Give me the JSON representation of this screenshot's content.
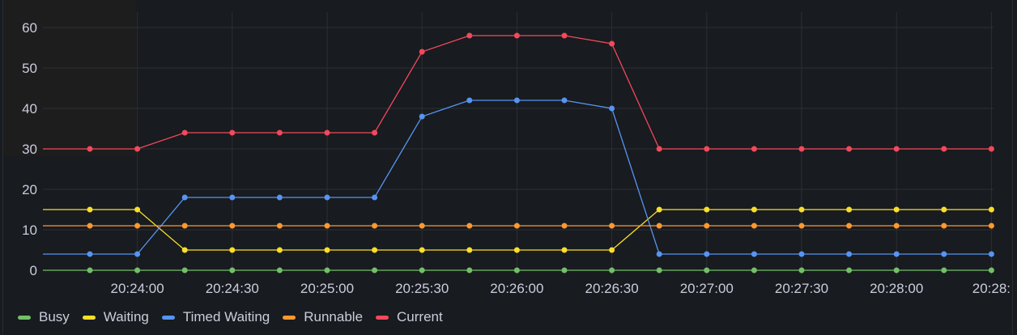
{
  "chart_data": {
    "type": "line",
    "title": "",
    "xlabel": "",
    "ylabel": "",
    "ylim": [
      0,
      60
    ],
    "yticks": [
      0,
      10,
      20,
      30,
      40,
      50,
      60
    ],
    "grid": true,
    "legend_position": "bottom",
    "xtick_labels": [
      "20:24:00",
      "20:24:30",
      "20:25:00",
      "20:25:30",
      "20:26:00",
      "20:26:30",
      "20:27:00",
      "20:27:30",
      "20:28:00",
      "20:28:"
    ],
    "x": [
      "20:23:45",
      "20:24:00",
      "20:24:15",
      "20:24:30",
      "20:24:45",
      "20:25:00",
      "20:25:15",
      "20:25:30",
      "20:25:45",
      "20:26:00",
      "20:26:15",
      "20:26:30",
      "20:26:45",
      "20:27:00",
      "20:27:15",
      "20:27:30",
      "20:27:45",
      "20:28:00",
      "20:28:15",
      "20:28:30"
    ],
    "series": [
      {
        "name": "Busy",
        "color": "#73bf69",
        "values": [
          0,
          0,
          0,
          0,
          0,
          0,
          0,
          0,
          0,
          0,
          0,
          0,
          0,
          0,
          0,
          0,
          0,
          0,
          0,
          0
        ]
      },
      {
        "name": "Waiting",
        "color": "#fade2a",
        "values": [
          15,
          15,
          5,
          5,
          5,
          5,
          5,
          5,
          5,
          5,
          5,
          5,
          15,
          15,
          15,
          15,
          15,
          15,
          15,
          15
        ]
      },
      {
        "name": "Timed Waiting",
        "color": "#5794f2",
        "values": [
          4,
          4,
          18,
          18,
          18,
          18,
          18,
          38,
          42,
          42,
          42,
          40,
          4,
          4,
          4,
          4,
          4,
          4,
          4,
          4
        ]
      },
      {
        "name": "Runnable",
        "color": "#ff9830",
        "values": [
          11,
          11,
          11,
          11,
          11,
          11,
          11,
          11,
          11,
          11,
          11,
          11,
          11,
          11,
          11,
          11,
          11,
          11,
          11,
          11
        ]
      },
      {
        "name": "Current",
        "color": "#f2495c",
        "values": [
          30,
          30,
          34,
          34,
          34,
          34,
          34,
          54,
          58,
          58,
          58,
          56,
          30,
          30,
          30,
          30,
          30,
          30,
          30,
          30
        ]
      }
    ]
  },
  "legend": [
    {
      "label": "Busy",
      "color": "#73bf69"
    },
    {
      "label": "Waiting",
      "color": "#fade2a"
    },
    {
      "label": "Timed Waiting",
      "color": "#5794f2"
    },
    {
      "label": "Runnable",
      "color": "#ff9830"
    },
    {
      "label": "Current",
      "color": "#f2495c"
    }
  ]
}
